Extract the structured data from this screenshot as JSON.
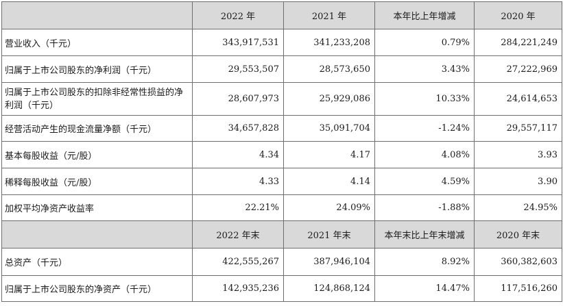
{
  "header1": [
    "2022 年",
    "2021 年",
    "本年比上年增减",
    "2020 年"
  ],
  "rows1": [
    {
      "label": "营业收入（千元）",
      "values": [
        "343,917,531",
        "341,233,208",
        "0.79%",
        "284,221,249"
      ]
    },
    {
      "label": "归属于上市公司股东的净利润（千元）",
      "values": [
        "29,553,507",
        "28,573,650",
        "3.43%",
        "27,222,969"
      ]
    },
    {
      "label": "归属于上市公司股东的扣除非经常性损益的净利润（千元）",
      "values": [
        "28,607,973",
        "25,929,086",
        "10.33%",
        "24,614,653"
      ]
    },
    {
      "label": "经营活动产生的现金流量净额（千元）",
      "values": [
        "34,657,828",
        "35,091,704",
        "-1.24%",
        "29,557,117"
      ]
    },
    {
      "label": "基本每股收益（元/股）",
      "values": [
        "4.34",
        "4.17",
        "4.08%",
        "3.93"
      ]
    },
    {
      "label": "稀释每股收益（元/股）",
      "values": [
        "4.33",
        "4.14",
        "4.59%",
        "3.90"
      ]
    },
    {
      "label": "加权平均净资产收益率",
      "values": [
        "22.21%",
        "24.09%",
        "-1.88%",
        "24.95%"
      ]
    }
  ],
  "header2": [
    "2022 年末",
    "2021 年末",
    "本年末比上年末增减",
    "2020 年末"
  ],
  "rows2": [
    {
      "label": "总资产（千元）",
      "values": [
        "422,555,267",
        "387,946,104",
        "8.92%",
        "360,382,603"
      ]
    },
    {
      "label": "归属于上市公司股东的净资产（千元）",
      "values": [
        "142,935,236",
        "124,868,124",
        "14.47%",
        "117,516,260"
      ]
    }
  ]
}
